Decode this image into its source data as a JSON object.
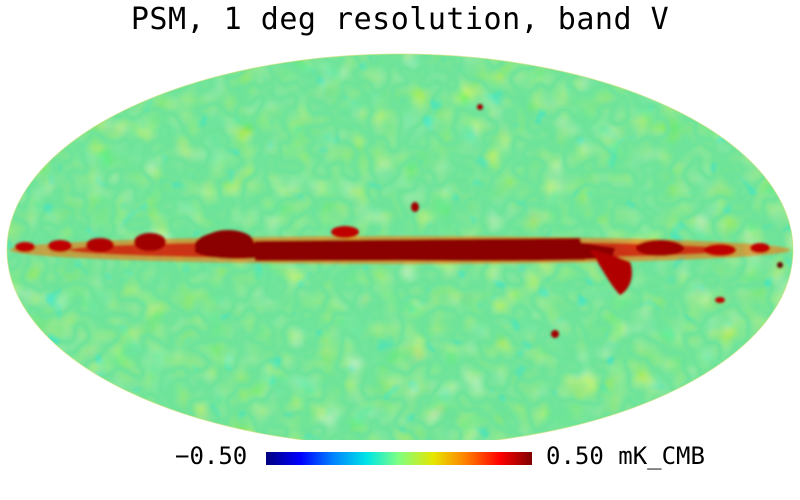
{
  "title": "PSM, 1 deg resolution, band V",
  "colorbar": {
    "min_label": "−0.50",
    "max_label": "0.50 mK_CMB",
    "min_value": -0.5,
    "max_value": 0.5,
    "unit": "mK_CMB",
    "colormap": [
      "#00007f",
      "#0000ff",
      "#0080ff",
      "#00e6e6",
      "#80ff80",
      "#e6e600",
      "#ff8000",
      "#ff0000",
      "#7f0000"
    ]
  },
  "map": {
    "projection": "mollweide",
    "background_color": "#5ee0a0",
    "galactic_plane_color": "#8b0000"
  }
}
